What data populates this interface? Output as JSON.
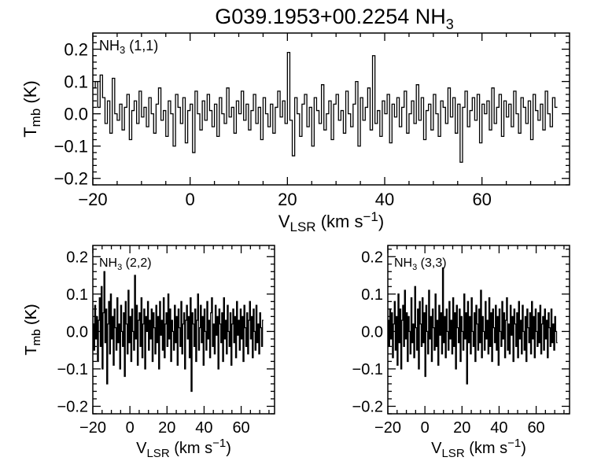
{
  "figure": {
    "title_main": "G039.1953+00.2254 NH",
    "title_sub": "3"
  },
  "colors": {
    "ink": "#000000",
    "background": "#ffffff"
  },
  "chart_data": [
    {
      "type": "line",
      "panel": "top",
      "label_main": "NH",
      "label_sub": "3",
      "label_tail": " (1,1)",
      "xlabel_main": "V",
      "xlabel_sub": "LSR",
      "xlabel_mid": " (km s",
      "xlabel_sup": "−1",
      "xlabel_end": ")",
      "ylabel_main": "T",
      "ylabel_sub": "mb",
      "ylabel_end": " (K)",
      "xlim": [
        -20,
        78
      ],
      "ylim": [
        -0.22,
        0.25
      ],
      "xticks": [
        -20,
        0,
        20,
        40,
        60
      ],
      "xtick_labels": [
        "−20",
        "0",
        "20",
        "40",
        "60"
      ],
      "yticks": [
        -0.2,
        -0.1,
        0.0,
        0.1,
        0.2
      ],
      "ytick_labels": [
        "−0.2",
        "−0.1",
        "0.0",
        "0.1",
        "0.2"
      ],
      "x_start": -20,
      "x_step": 0.5,
      "y": [
        0.08,
        0.1,
        0.02,
        0.12,
        0.05,
        -0.03,
        0.04,
        -0.06,
        0.11,
        0.0,
        -0.02,
        0.03,
        -0.05,
        0.02,
        0.06,
        -0.08,
        0.01,
        0.04,
        -0.03,
        0.07,
        -0.01,
        0.02,
        -0.04,
        0.05,
        0.0,
        -0.06,
        0.03,
        0.08,
        -0.02,
        0.01,
        -0.07,
        0.04,
        0.0,
        -0.1,
        0.06,
        0.02,
        -0.03,
        0.05,
        -0.09,
        0.01,
        0.03,
        -0.12,
        0.07,
        0.0,
        -0.05,
        0.04,
        -0.02,
        0.06,
        0.01,
        -0.04,
        0.03,
        -0.07,
        0.05,
        0.0,
        -0.03,
        0.08,
        -0.01,
        0.02,
        -0.06,
        0.04,
        0.0,
        0.07,
        -0.02,
        0.03,
        -0.05,
        0.01,
        0.06,
        -0.03,
        0.02,
        -0.08,
        0.05,
        0.0,
        -0.04,
        0.03,
        -0.06,
        0.02,
        0.07,
        -0.01,
        0.04,
        -0.03,
        0.19,
        -0.02,
        -0.13,
        0.05,
        0.0,
        -0.07,
        0.03,
        0.06,
        -0.04,
        0.02,
        -0.1,
        0.05,
        0.01,
        -0.03,
        0.09,
        -0.05,
        0.0,
        0.04,
        -0.08,
        0.03,
        0.06,
        -0.02,
        0.01,
        -0.06,
        0.07,
        0.0,
        -0.04,
        0.03,
        0.1,
        -0.1,
        0.05,
        -0.02,
        0.02,
        0.08,
        -0.05,
        0.18,
        -0.03,
        0.01,
        -0.07,
        0.04,
        0.0,
        0.06,
        -0.09,
        0.03,
        -0.01,
        0.05,
        -0.04,
        0.02,
        0.07,
        -0.06,
        0.0,
        0.04,
        -0.03,
        0.09,
        -0.02,
        0.05,
        -0.08,
        0.01,
        0.03,
        -0.05,
        0.06,
        0.0,
        -0.07,
        0.04,
        0.02,
        -0.03,
        0.08,
        -0.01,
        0.05,
        -0.06,
        0.03,
        -0.15,
        0.02,
        0.07,
        -0.04,
        0.01,
        0.05,
        -0.02,
        0.06,
        -0.09,
        0.03,
        0.0,
        0.04,
        -0.05,
        0.08,
        -0.03,
        0.02,
        0.06,
        -0.07,
        0.04,
        -0.01,
        0.03,
        -0.04,
        0.07,
        0.0,
        -0.06,
        0.05,
        0.02,
        -0.03,
        0.04,
        -0.08,
        0.06,
        0.01,
        -0.02,
        0.03,
        -0.05,
        0.07,
        0.0,
        -0.04,
        0.05,
        0.02
      ]
    },
    {
      "type": "line",
      "panel": "bottom-left",
      "label_main": "NH",
      "label_sub": "3",
      "label_tail": " (2,2)",
      "xlabel_main": "V",
      "xlabel_sub": "LSR",
      "xlabel_mid": " (km s",
      "xlabel_sup": "−1",
      "xlabel_end": ")",
      "ylabel_main": "T",
      "ylabel_sub": "mb",
      "ylabel_end": " (K)",
      "xlim": [
        -20,
        78
      ],
      "ylim": [
        -0.22,
        0.23
      ],
      "xticks": [
        -20,
        0,
        20,
        40,
        60
      ],
      "xtick_labels": [
        "−20",
        "0",
        "20",
        "40",
        "60"
      ],
      "yticks": [
        -0.2,
        -0.1,
        0.0,
        0.1,
        0.2
      ],
      "ytick_labels": [
        "−0.2",
        "−0.1",
        "0.0",
        "0.1",
        "0.2"
      ],
      "x_start": -20,
      "x_step": 0.5,
      "y": [
        0.02,
        -0.05,
        0.07,
        -0.02,
        0.04,
        -0.08,
        0.03,
        0.09,
        -0.04,
        0.12,
        -0.1,
        0.05,
        0.16,
        -0.03,
        0.06,
        -0.14,
        0.02,
        0.08,
        -0.06,
        0.1,
        -0.02,
        0.04,
        -0.09,
        0.06,
        0.01,
        -0.05,
        0.09,
        -0.03,
        0.02,
        -0.1,
        0.07,
        0.0,
        -0.04,
        0.05,
        -0.12,
        0.08,
        0.02,
        -0.06,
        0.11,
        -0.03,
        0.04,
        -0.08,
        0.06,
        0.0,
        -0.05,
        0.15,
        -0.02,
        0.07,
        -0.09,
        0.03,
        0.05,
        -0.04,
        0.09,
        -0.07,
        0.02,
        0.06,
        -0.1,
        0.04,
        0.0,
        0.08,
        -0.05,
        0.03,
        -0.02,
        0.06,
        -0.08,
        0.05,
        0.01,
        -0.06,
        0.07,
        -0.03,
        0.04,
        -0.1,
        0.08,
        -0.01,
        0.03,
        -0.05,
        0.09,
        -0.07,
        0.02,
        0.05,
        -0.04,
        0.1,
        -0.02,
        0.06,
        -0.08,
        0.03,
        0.0,
        -0.05,
        0.07,
        -0.03,
        0.04,
        -0.09,
        0.06,
        0.01,
        -0.04,
        0.08,
        -0.06,
        0.02,
        0.05,
        -0.1,
        0.03,
        0.07,
        -0.02,
        0.04,
        -0.07,
        0.09,
        -0.16,
        0.05,
        0.02,
        -0.04,
        0.06,
        -0.08,
        0.03,
        0.1,
        -0.05,
        0.01,
        0.07,
        -0.03,
        0.04,
        -0.09,
        0.06,
        0.0,
        -0.05,
        0.08,
        -0.02,
        0.03,
        -0.07,
        0.05,
        0.09,
        -0.04,
        0.02,
        -0.06,
        0.07,
        -0.01,
        0.04,
        -0.1,
        0.06,
        0.02,
        -0.03,
        0.05,
        -0.08,
        0.09,
        -0.02,
        0.03,
        -0.06,
        0.07,
        0.0,
        -0.04,
        0.05,
        -0.09,
        0.02,
        0.06,
        -0.03,
        0.04,
        -0.07,
        0.08,
        -0.01,
        0.03,
        -0.05,
        0.06,
        -0.02,
        0.04,
        -0.08,
        0.07,
        0.01,
        -0.04,
        0.05,
        -0.06,
        0.03,
        0.08,
        -0.02,
        0.04,
        -0.07,
        0.06,
        0.0,
        -0.05,
        0.07,
        -0.03,
        0.02,
        -0.06,
        0.05,
        0.01,
        -0.04,
        0.03
      ]
    },
    {
      "type": "line",
      "panel": "bottom-right",
      "label_main": "NH",
      "label_sub": "3",
      "label_tail": " (3,3)",
      "xlabel_main": "V",
      "xlabel_sub": "LSR",
      "xlabel_mid": " (km s",
      "xlabel_sup": "−1",
      "xlabel_end": ")",
      "ylabel_main": "T",
      "ylabel_sub": "mb",
      "ylabel_end": " (K)",
      "xlim": [
        -20,
        78
      ],
      "ylim": [
        -0.22,
        0.23
      ],
      "xticks": [
        -20,
        0,
        20,
        40,
        60
      ],
      "xtick_labels": [
        "−20",
        "0",
        "20",
        "40",
        "60"
      ],
      "yticks": [
        -0.2,
        -0.1,
        0.0,
        0.1,
        0.2
      ],
      "ytick_labels": [
        "−0.2",
        "−0.1",
        "0.0",
        "0.1",
        "0.2"
      ],
      "x_start": -20,
      "x_step": 0.5,
      "y": [
        0.03,
        -0.04,
        0.06,
        -0.02,
        0.05,
        -0.07,
        0.02,
        0.08,
        -0.05,
        0.04,
        -0.09,
        0.1,
        -0.03,
        0.06,
        -0.1,
        0.03,
        0.07,
        -0.04,
        0.11,
        -0.02,
        0.05,
        -0.08,
        0.04,
        0.0,
        -0.06,
        0.09,
        -0.03,
        0.02,
        -0.07,
        0.12,
        0.01,
        -0.05,
        0.06,
        -0.1,
        0.08,
        0.02,
        -0.04,
        0.09,
        -0.03,
        0.05,
        -0.12,
        0.07,
        0.0,
        -0.06,
        0.11,
        -0.02,
        0.04,
        -0.08,
        0.06,
        0.01,
        -0.05,
        0.1,
        -0.04,
        0.03,
        -0.09,
        0.07,
        -0.01,
        0.05,
        -0.06,
        0.17,
        -0.03,
        0.04,
        -0.07,
        0.06,
        0.0,
        -0.05,
        0.08,
        -0.02,
        0.03,
        -0.06,
        0.09,
        -0.04,
        0.05,
        -0.1,
        0.07,
        0.01,
        -0.03,
        0.06,
        -0.08,
        0.04,
        0.0,
        -0.05,
        0.1,
        -0.02,
        0.05,
        -0.14,
        0.08,
        -0.03,
        0.04,
        -0.06,
        0.09,
        0.0,
        -0.04,
        0.05,
        -0.08,
        0.07,
        0.02,
        -0.05,
        0.06,
        -0.03,
        0.11,
        -0.07,
        0.04,
        0.0,
        -0.05,
        0.08,
        -0.02,
        0.03,
        -0.06,
        0.09,
        -0.04,
        0.05,
        -0.08,
        0.06,
        0.01,
        -0.03,
        0.07,
        -0.05,
        0.04,
        -0.09,
        0.06,
        0.0,
        -0.04,
        0.08,
        -0.02,
        0.05,
        -0.07,
        0.03,
        0.09,
        -0.05,
        0.02,
        -0.06,
        0.07,
        -0.01,
        0.04,
        -0.08,
        0.06,
        0.02,
        -0.04,
        0.05,
        -0.07,
        0.08,
        -0.02,
        0.03,
        -0.06,
        0.07,
        0.0,
        -0.05,
        0.04,
        -0.08,
        0.06,
        0.01,
        -0.03,
        0.05,
        -0.06,
        0.08,
        -0.02,
        0.04,
        -0.07,
        0.06,
        0.0,
        -0.04,
        0.05,
        -0.03,
        0.07,
        -0.06,
        0.02,
        0.04,
        -0.05,
        0.06,
        -0.02,
        0.03,
        -0.07,
        0.05,
        0.01,
        -0.04,
        0.06,
        -0.03,
        0.02,
        -0.05,
        0.04,
        0.0,
        -0.03
      ]
    }
  ]
}
